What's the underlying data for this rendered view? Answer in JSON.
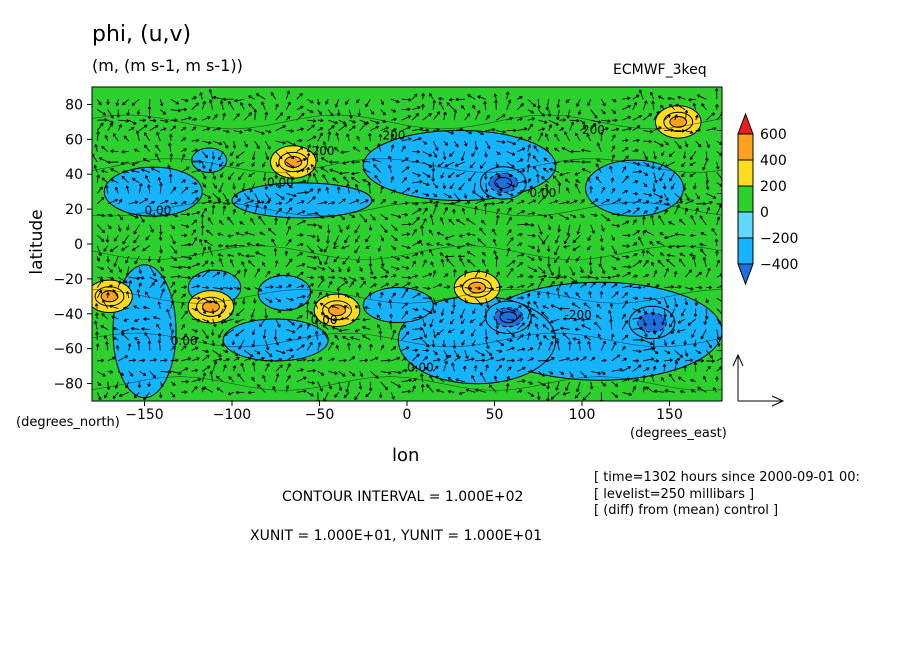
{
  "chart_data": {
    "type": "heatmap",
    "title": "phi, (u,v)",
    "units": "(m, (m s-1, m s-1))",
    "experiment": "ECMWF_3keq",
    "xlabel": "lon",
    "ylabel": "latitude",
    "x_units_label": "(degrees_east)",
    "y_units_label": "(degrees_north)",
    "x_ticks": [
      -150,
      -100,
      -50,
      0,
      50,
      100,
      150
    ],
    "x_tick_labels": [
      "−150",
      "−100",
      "−50",
      "0",
      "50",
      "100",
      "150"
    ],
    "y_ticks": [
      -80,
      -60,
      -40,
      -20,
      0,
      20,
      40,
      60,
      80
    ],
    "y_tick_labels": [
      "−80",
      "−60",
      "−40",
      "−20",
      "0",
      "20",
      "40",
      "60",
      "80"
    ],
    "xlim": [
      -180,
      180
    ],
    "ylim": [
      -90,
      90
    ],
    "colorbar": {
      "levels": [
        -400,
        -200,
        0,
        200,
        400,
        600
      ],
      "labels": [
        "−400",
        "−200",
        "0",
        "200",
        "400",
        "600"
      ],
      "colors": [
        "#1e6fe0",
        "#14b4ff",
        "#62d8ff",
        "#2dd12d",
        "#ffdd1e",
        "#ffa21e",
        "#ee1c1c"
      ]
    },
    "features": [
      {
        "kind": "high",
        "lon": -65,
        "lat": 47,
        "value": 400
      },
      {
        "kind": "high",
        "lon": -170,
        "lat": -30,
        "value": 400
      },
      {
        "kind": "high",
        "lon": -112,
        "lat": -36,
        "value": 400
      },
      {
        "kind": "high",
        "lon": -40,
        "lat": -38,
        "value": 400
      },
      {
        "kind": "high",
        "lon": 40,
        "lat": -25,
        "value": 400
      },
      {
        "kind": "high",
        "lon": 155,
        "lat": 70,
        "value": 400
      },
      {
        "kind": "low",
        "lon": 55,
        "lat": 35,
        "value": -400
      },
      {
        "kind": "low",
        "lon": 58,
        "lat": -42,
        "value": -400
      },
      {
        "kind": "low",
        "lon": 140,
        "lat": -45,
        "value": -300
      }
    ],
    "contour_labels": [
      "200",
      "-200",
      "0.00",
      "0.00",
      "0.00",
      "0.00",
      "0.00",
      "0.00",
      "-200",
      "200"
    ],
    "reference_vector": {
      "u": 10,
      "v": 10
    }
  },
  "annotations": {
    "contour_interval": "CONTOUR INTERVAL = 1.000E+02",
    "vector_units": "XUNIT = 1.000E+01, YUNIT = 1.000E+01",
    "time": "[ time=1302 hours since 2000-09-01 00:",
    "levelist": "[ levelist=250 millibars ]",
    "diff": "[ (diff) from (mean) control ]"
  }
}
